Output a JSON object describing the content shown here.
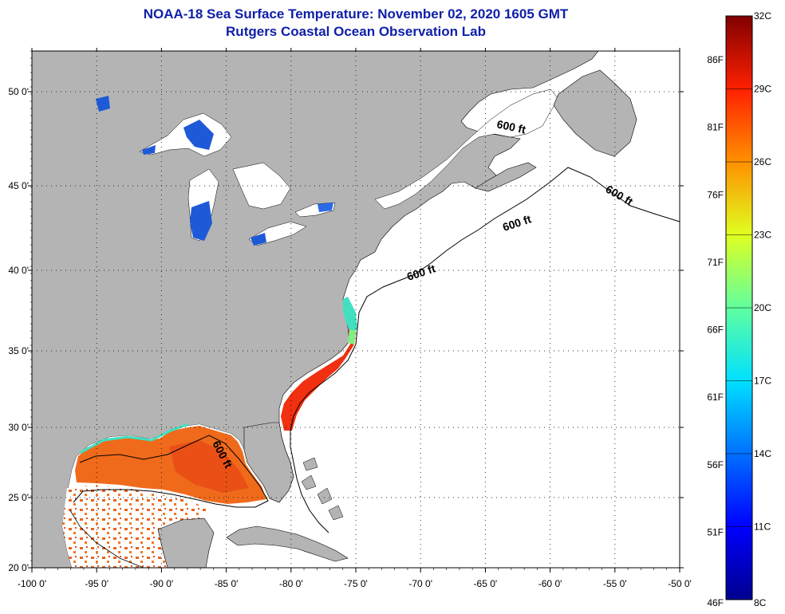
{
  "title_line1": "NOAA-18 Sea Surface Temperature:  November 02, 2020 1605 GMT",
  "title_line2": "Rutgers Coastal Ocean Observation Lab",
  "contour_label": "600 ft",
  "lon_ticks": [
    "-100 0'",
    "-95 0'",
    "-90 0'",
    "-85 0'",
    "-80 0'",
    "-75 0'",
    "-70 0'",
    "-65 0'",
    "-60 0'",
    "-55 0'",
    "-50 0'"
  ],
  "lat_ticks": [
    "20 0'",
    "25 0'",
    "30 0'",
    "35 0'",
    "40 0'",
    "45 0'",
    "50 0'"
  ],
  "colorbar": {
    "celsius": [
      "32C",
      "29C",
      "26C",
      "23C",
      "20C",
      "17C",
      "14C",
      "11C",
      "8C"
    ],
    "fahrenheit": [
      "86F",
      "81F",
      "76F",
      "71F",
      "66F",
      "61F",
      "56F",
      "51F",
      "46F"
    ],
    "colors": [
      "#00008f",
      "#0000ff",
      "#0080ff",
      "#00ffff",
      "#80ff80",
      "#ffff00",
      "#ff8000",
      "#ff0000",
      "#800000"
    ]
  },
  "colors": {
    "land": "#b4b4b4",
    "ocean_no_data": "#ffffff",
    "sst_gulf": "#f06a1c",
    "sst_gulf_warm": "#e84a14",
    "sst_coast": "#f03010",
    "sst_cool": "#40e0c0",
    "lake_blue": "#1e5ad8",
    "title": "#1020a8"
  }
}
